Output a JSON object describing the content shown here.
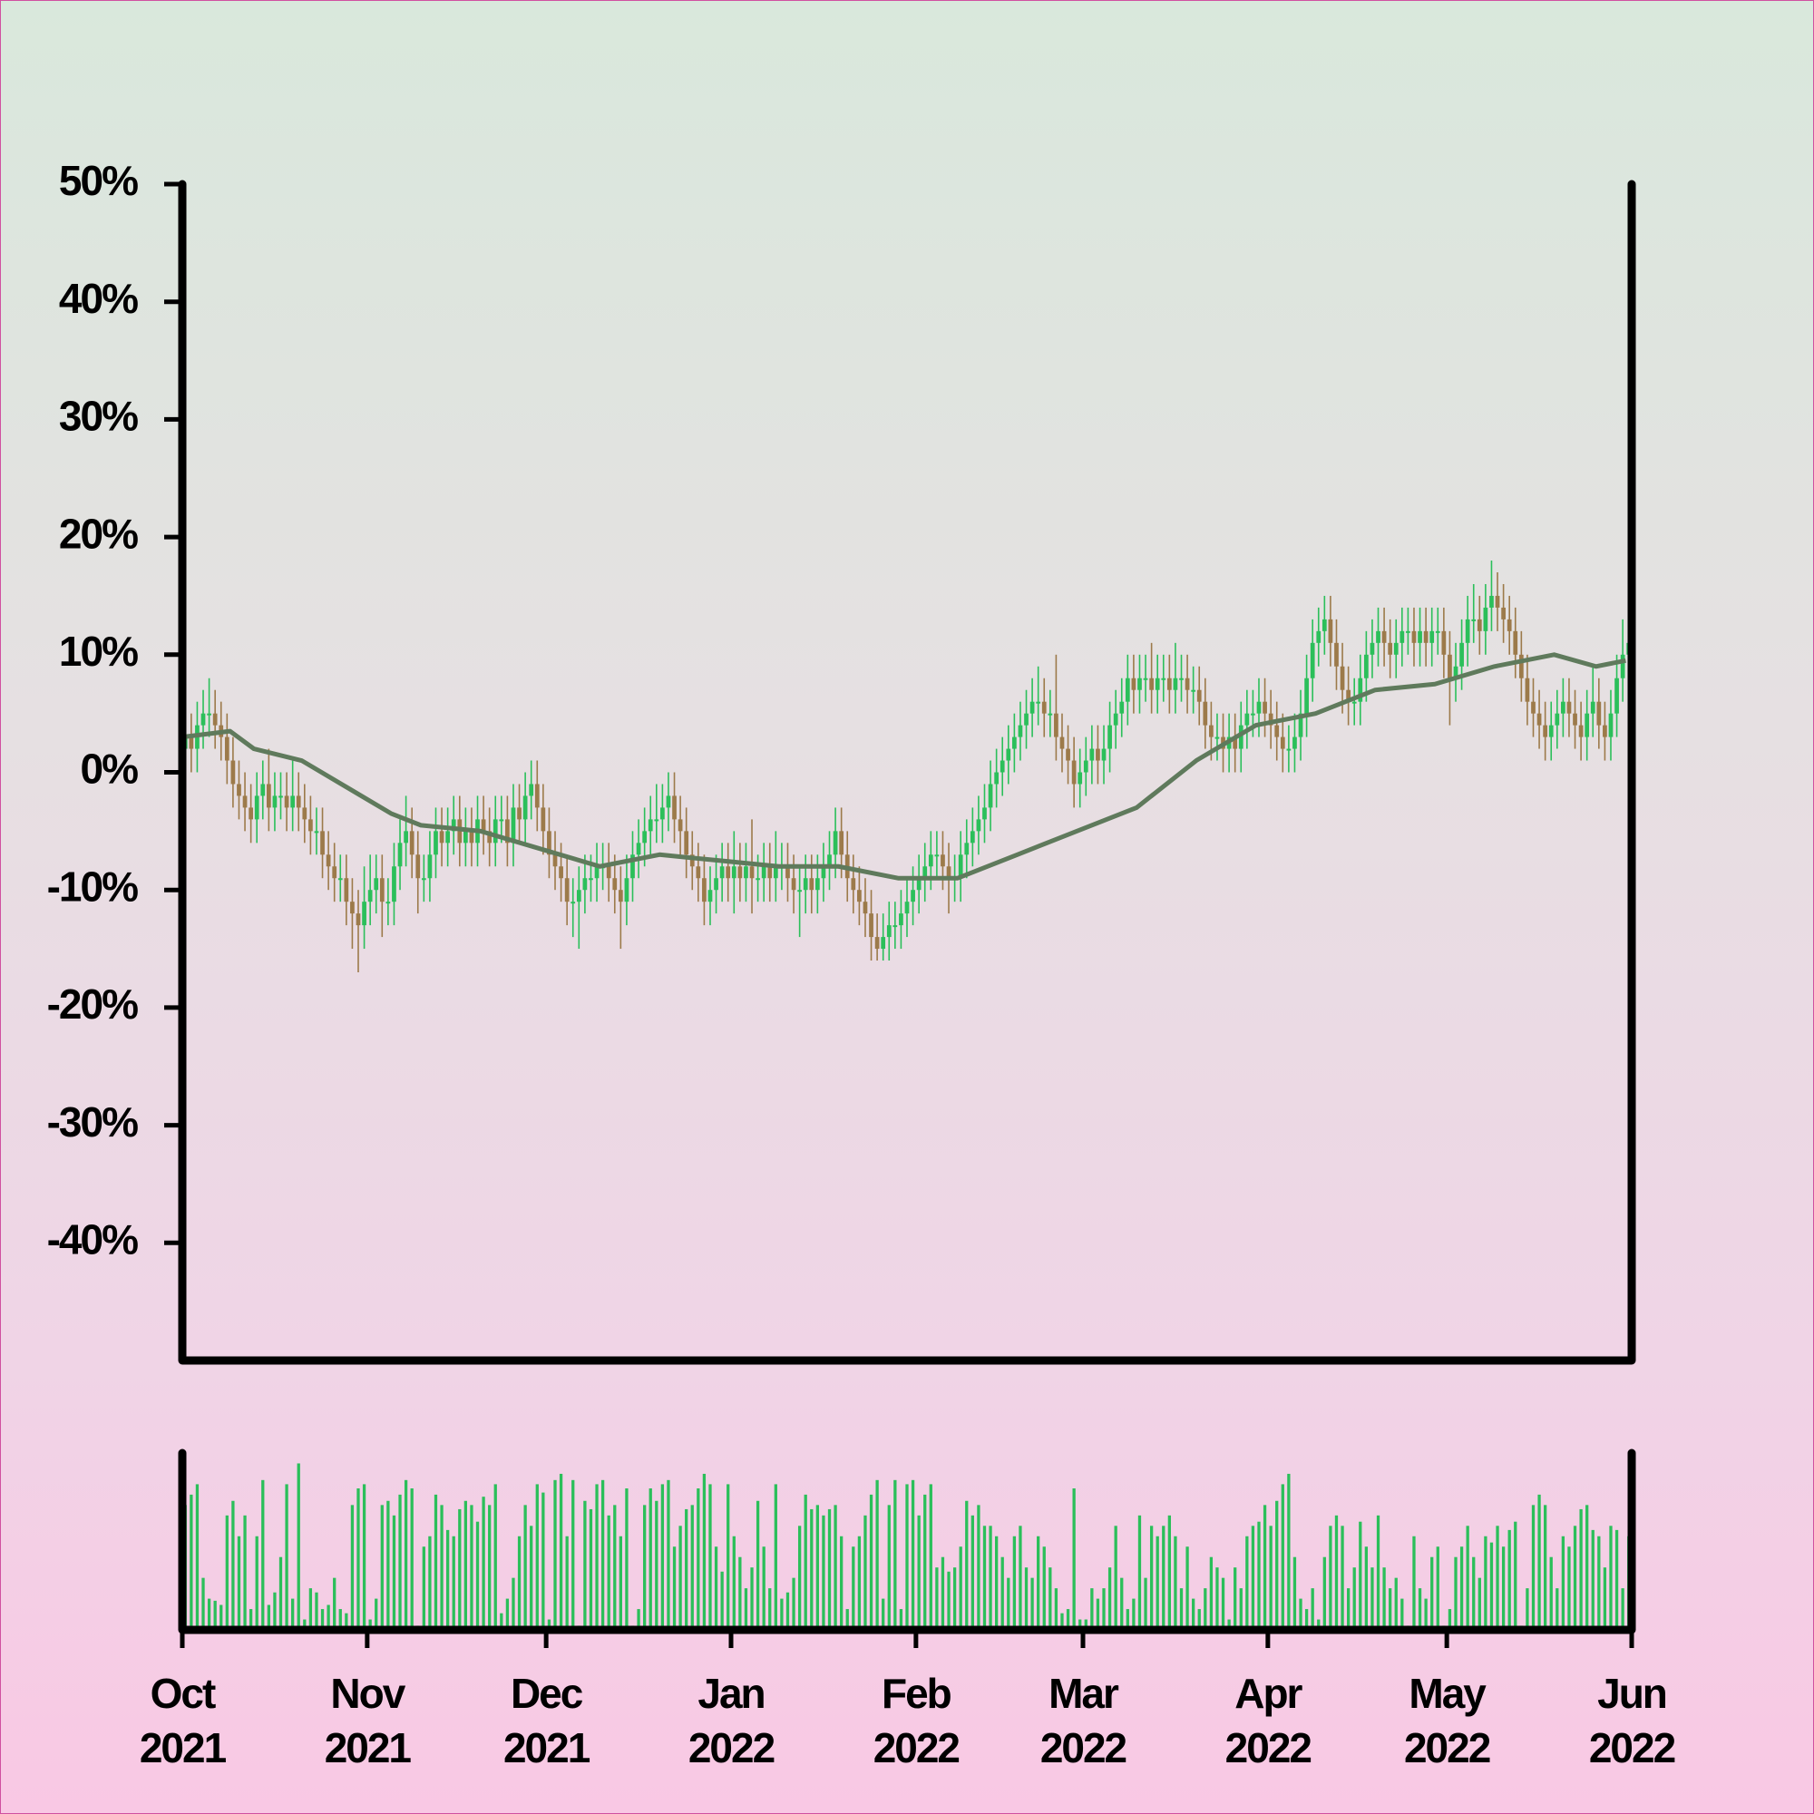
{
  "chart_data": {
    "type": "candlestick",
    "open": [
      2,
      3,
      2,
      4,
      5,
      5,
      4,
      3,
      1,
      -1,
      -2,
      -3,
      -4,
      -2,
      -1,
      -3,
      -2,
      -2,
      -3,
      -2,
      -3,
      -4,
      -5,
      -5,
      -7,
      -8,
      -9,
      -9,
      -11,
      -12,
      -13,
      -11,
      -10,
      -9,
      -11,
      -11,
      -8,
      -6,
      -5,
      -7,
      -9,
      -9,
      -7,
      -5,
      -6,
      -5,
      -4,
      -6,
      -5,
      -6,
      -4,
      -5,
      -6,
      -4,
      -4,
      -6,
      -3,
      -4,
      -2,
      -1,
      -3,
      -5,
      -7,
      -8,
      -9,
      -11,
      -11,
      -10,
      -9,
      -9,
      -8,
      -8,
      -9,
      -10,
      -11,
      -9,
      -7,
      -6,
      -5,
      -4,
      -4,
      -3,
      -2,
      -4,
      -5,
      -7,
      -8,
      -9,
      -11,
      -10,
      -9,
      -8,
      -9,
      -8,
      -9,
      -8,
      -9,
      -9,
      -8,
      -9,
      -8,
      -8,
      -9,
      -10,
      -10,
      -9,
      -10,
      -9,
      -8,
      -7,
      -5,
      -7,
      -9,
      -10,
      -11,
      -12,
      -14,
      -15,
      -14,
      -13,
      -13,
      -12,
      -11,
      -10,
      -9,
      -8,
      -7,
      -7,
      -8,
      -9,
      -9,
      -7,
      -6,
      -5,
      -4,
      -3,
      -1,
      0,
      1,
      2,
      3,
      4,
      5,
      6,
      6,
      5,
      5,
      3,
      2,
      1,
      -1,
      0,
      1,
      2,
      1,
      2,
      4,
      5,
      6,
      8,
      7,
      8,
      8,
      7,
      8,
      8,
      7,
      8,
      8,
      7,
      7,
      6,
      4,
      3,
      3,
      2,
      3,
      2,
      4,
      5,
      5,
      6,
      5,
      4,
      3,
      2,
      2,
      3,
      5,
      8,
      11,
      12,
      13,
      11,
      9,
      7,
      6,
      6,
      8,
      10,
      11,
      12,
      11,
      10,
      11,
      12,
      12,
      11,
      12,
      11,
      12,
      12,
      10,
      8,
      9,
      11,
      13,
      13,
      12,
      14,
      15,
      14,
      13,
      12,
      10,
      8,
      6,
      5,
      4,
      3,
      4,
      5,
      6,
      5,
      4,
      3,
      5,
      6,
      4,
      3,
      5,
      8,
      10
    ],
    "high": [
      6,
      5,
      6,
      7,
      8,
      7,
      6,
      5,
      3,
      1,
      0,
      -1,
      0,
      1,
      2,
      0,
      0,
      0,
      1,
      0,
      -1,
      -2,
      -3,
      -3,
      -5,
      -6,
      -7,
      -7,
      -9,
      -10,
      -8,
      -7,
      -7,
      -7,
      -9,
      -6,
      -4,
      -2,
      -3,
      -5,
      -7,
      -5,
      -3,
      -3,
      -3,
      -2,
      -2,
      -3,
      -3,
      -2,
      -2,
      -3,
      -2,
      -2,
      -2,
      -1,
      -1,
      0,
      1,
      1,
      -1,
      -3,
      -5,
      -6,
      -7,
      -9,
      -8,
      -7,
      -7,
      -6,
      -6,
      -6,
      -7,
      -8,
      -7,
      -5,
      -4,
      -3,
      -2,
      -1,
      -1,
      0,
      0,
      -2,
      -3,
      -5,
      -6,
      -7,
      -8,
      -7,
      -6,
      -6,
      -5,
      -6,
      -6,
      -4,
      -7,
      -6,
      -6,
      -5,
      -6,
      -6,
      -7,
      -8,
      -7,
      -7,
      -7,
      -6,
      -5,
      -3,
      -3,
      -5,
      -7,
      -8,
      -9,
      -10,
      -12,
      -12,
      -11,
      -11,
      -10,
      -9,
      -8,
      -7,
      -6,
      -5,
      -5,
      -5,
      -6,
      -7,
      -5,
      -4,
      -3,
      -2,
      -1,
      1,
      2,
      3,
      4,
      5,
      6,
      7,
      8,
      9,
      8,
      7,
      10,
      5,
      4,
      3,
      2,
      3,
      4,
      4,
      4,
      6,
      7,
      8,
      10,
      10,
      10,
      10,
      11,
      10,
      10,
      10,
      11,
      10,
      10,
      9,
      9,
      8,
      6,
      5,
      5,
      5,
      5,
      6,
      7,
      7,
      8,
      8,
      7,
      6,
      5,
      4,
      5,
      7,
      10,
      13,
      14,
      15,
      15,
      13,
      11,
      9,
      8,
      10,
      12,
      13,
      14,
      14,
      13,
      13,
      14,
      14,
      14,
      14,
      14,
      14,
      14,
      14,
      12,
      11,
      13,
      15,
      16,
      15,
      16,
      18,
      17,
      16,
      15,
      14,
      12,
      10,
      8,
      7,
      6,
      6,
      7,
      8,
      8,
      7,
      6,
      7,
      9,
      8,
      6,
      7,
      10,
      13,
      15
    ],
    "low": [
      -1,
      0,
      0,
      2,
      3,
      2,
      1,
      -1,
      -3,
      -4,
      -5,
      -6,
      -6,
      -4,
      -5,
      -5,
      -4,
      -5,
      -5,
      -5,
      -6,
      -7,
      -7,
      -9,
      -10,
      -11,
      -11,
      -13,
      -15,
      -17,
      -15,
      -13,
      -12,
      -14,
      -13,
      -13,
      -10,
      -8,
      -9,
      -12,
      -11,
      -11,
      -9,
      -8,
      -8,
      -7,
      -8,
      -8,
      -8,
      -8,
      -7,
      -8,
      -8,
      -6,
      -8,
      -8,
      -6,
      -6,
      -4,
      -5,
      -7,
      -9,
      -10,
      -11,
      -13,
      -14,
      -15,
      -12,
      -11,
      -11,
      -10,
      -11,
      -12,
      -15,
      -13,
      -11,
      -9,
      -8,
      -7,
      -6,
      -6,
      -5,
      -6,
      -7,
      -9,
      -10,
      -11,
      -13,
      -13,
      -12,
      -11,
      -11,
      -12,
      -11,
      -11,
      -12,
      -11,
      -11,
      -11,
      -11,
      -10,
      -11,
      -12,
      -14,
      -12,
      -12,
      -12,
      -11,
      -10,
      -9,
      -9,
      -11,
      -12,
      -13,
      -14,
      -16,
      -16,
      -16,
      -16,
      -15,
      -15,
      -14,
      -13,
      -12,
      -11,
      -10,
      -9,
      -10,
      -12,
      -11,
      -11,
      -9,
      -8,
      -7,
      -6,
      -5,
      -3,
      -2,
      -1,
      0,
      1,
      2,
      3,
      4,
      3,
      3,
      1,
      0,
      -1,
      -3,
      -3,
      -2,
      -1,
      -1,
      -1,
      0,
      2,
      3,
      4,
      5,
      5,
      6,
      5,
      5,
      6,
      5,
      5,
      6,
      5,
      5,
      4,
      2,
      1,
      1,
      0,
      0,
      0,
      0,
      2,
      3,
      3,
      3,
      2,
      1,
      0,
      0,
      0,
      1,
      3,
      6,
      9,
      10,
      9,
      7,
      5,
      4,
      4,
      4,
      6,
      8,
      9,
      9,
      8,
      8,
      9,
      10,
      9,
      9,
      9,
      9,
      10,
      8,
      4,
      6,
      7,
      9,
      11,
      10,
      10,
      12,
      12,
      11,
      10,
      8,
      6,
      4,
      3,
      2,
      1,
      1,
      2,
      3,
      3,
      2,
      1,
      1,
      3,
      2,
      1,
      1,
      3,
      6,
      8
    ],
    "close": [
      3,
      2,
      4,
      5,
      5,
      4,
      3,
      1,
      -1,
      -2,
      -3,
      -4,
      -2,
      -1,
      -3,
      -2,
      -2,
      -3,
      -2,
      -3,
      -4,
      -5,
      -5,
      -7,
      -8,
      -9,
      -9,
      -11,
      -12,
      -13,
      -11,
      -10,
      -9,
      -11,
      -11,
      -8,
      -6,
      -5,
      -7,
      -9,
      -9,
      -7,
      -5,
      -6,
      -5,
      -4,
      -6,
      -5,
      -6,
      -4,
      -5,
      -6,
      -4,
      -4,
      -6,
      -3,
      -4,
      -2,
      -1,
      -3,
      -5,
      -7,
      -8,
      -9,
      -11,
      -11,
      -10,
      -9,
      -9,
      -8,
      -8,
      -9,
      -10,
      -11,
      -9,
      -7,
      -6,
      -5,
      -4,
      -4,
      -3,
      -2,
      -4,
      -5,
      -7,
      -8,
      -9,
      -11,
      -10,
      -9,
      -8,
      -9,
      -8,
      -9,
      -8,
      -9,
      -9,
      -8,
      -9,
      -8,
      -8,
      -9,
      -10,
      -10,
      -9,
      -10,
      -9,
      -8,
      -7,
      -5,
      -7,
      -9,
      -10,
      -11,
      -12,
      -14,
      -15,
      -14,
      -13,
      -13,
      -12,
      -11,
      -10,
      -9,
      -8,
      -7,
      -7,
      -8,
      -9,
      -9,
      -7,
      -6,
      -5,
      -4,
      -3,
      -1,
      0,
      1,
      2,
      3,
      4,
      5,
      6,
      6,
      5,
      5,
      3,
      2,
      1,
      -1,
      0,
      1,
      2,
      1,
      2,
      4,
      5,
      6,
      8,
      7,
      8,
      8,
      7,
      8,
      8,
      7,
      8,
      8,
      7,
      7,
      6,
      4,
      3,
      3,
      2,
      3,
      2,
      4,
      5,
      5,
      6,
      5,
      4,
      3,
      2,
      2,
      3,
      5,
      8,
      11,
      12,
      13,
      11,
      9,
      7,
      6,
      6,
      8,
      10,
      11,
      12,
      11,
      10,
      11,
      12,
      12,
      11,
      12,
      11,
      12,
      12,
      10,
      8,
      9,
      11,
      13,
      13,
      12,
      14,
      15,
      14,
      13,
      12,
      10,
      8,
      6,
      5,
      4,
      3,
      4,
      5,
      6,
      5,
      4,
      3,
      5,
      6,
      4,
      3,
      5,
      8,
      10,
      11
    ],
    "up_color": "#2bbf5a",
    "down_color": "#9c7a4a",
    "moving_average": {
      "color": "#5f7a5c",
      "x": [
        0,
        8,
        12,
        20,
        30,
        35,
        40,
        50,
        60,
        70,
        80,
        90,
        100,
        110,
        120,
        130,
        140,
        150,
        160,
        170,
        180,
        190,
        200,
        210,
        220,
        230,
        237,
        242
      ],
      "values": [
        3,
        3.5,
        2,
        1,
        -2,
        -3.5,
        -4.5,
        -5,
        -6.5,
        -8,
        -7,
        -7.5,
        -8,
        -8,
        -9,
        -9,
        -7,
        -5,
        -3,
        1,
        4,
        5,
        7,
        7.5,
        9,
        10,
        9,
        9.5
      ]
    },
    "volume": {
      "color": "#2bbf5a",
      "ylim": [
        0,
        85
      ],
      "values": [
        60,
        65,
        70,
        25,
        15,
        14,
        12,
        55,
        62,
        45,
        55,
        10,
        45,
        72,
        12,
        18,
        35,
        70,
        15,
        80,
        5,
        20,
        18,
        10,
        12,
        25,
        10,
        8,
        60,
        68,
        70,
        5,
        15,
        60,
        62,
        55,
        65,
        72,
        68,
        2,
        40,
        45,
        65,
        60,
        48,
        45,
        58,
        62,
        60,
        52,
        64,
        60,
        70,
        8,
        15,
        25,
        45,
        60,
        50,
        70,
        66,
        5,
        72,
        75,
        45,
        72,
        2,
        62,
        58,
        70,
        72,
        55,
        60,
        45,
        68,
        2,
        10,
        60,
        68,
        62,
        70,
        72,
        40,
        50,
        58,
        60,
        68,
        75,
        70,
        40,
        28,
        70,
        45,
        35,
        20,
        30,
        62,
        40,
        20,
        70,
        15,
        18,
        25,
        50,
        65,
        58,
        60,
        55,
        58,
        60,
        45,
        10,
        40,
        45,
        55,
        65,
        72,
        15,
        60,
        72,
        10,
        70,
        72,
        55,
        65,
        70,
        30,
        35,
        28,
        30,
        40,
        62,
        55,
        60,
        50,
        50,
        45,
        35,
        25,
        45,
        50,
        30,
        25,
        45,
        40,
        30,
        20,
        8,
        10,
        68,
        5,
        5,
        20,
        15,
        20,
        30,
        50,
        25,
        10,
        15,
        55,
        25,
        50,
        45,
        50,
        55,
        45,
        20,
        40,
        15,
        10,
        20,
        35,
        30,
        25,
        5,
        30,
        20,
        45,
        50,
        52,
        60,
        50,
        62,
        70,
        75,
        35,
        15,
        10,
        20,
        5,
        35,
        50,
        55,
        50,
        20,
        30,
        52,
        40,
        30,
        55,
        30,
        20,
        25,
        15,
        2,
        45,
        20,
        15,
        35,
        40,
        2,
        10,
        35,
        40,
        50,
        35,
        25,
        45,
        42,
        50,
        40,
        48,
        52,
        2,
        20,
        60,
        65,
        60,
        35,
        20,
        45,
        40,
        50,
        58,
        60,
        48,
        45,
        30,
        50,
        48,
        20,
        45
      ]
    },
    "xlim": [
      0,
      243
    ],
    "xticks": [
      {
        "value": 0,
        "label": "Oct\n2021"
      },
      {
        "value": 31,
        "label": "Nov\n2021"
      },
      {
        "value": 61,
        "label": "Dec\n2021"
      },
      {
        "value": 92,
        "label": "Jan\n2022"
      },
      {
        "value": 123,
        "label": "Feb\n2022"
      },
      {
        "value": 151,
        "label": "Mar\n2022"
      },
      {
        "value": 182,
        "label": "Apr\n2022"
      },
      {
        "value": 212,
        "label": "May\n2022"
      },
      {
        "value": 243,
        "label": "Jun\n2022"
      }
    ],
    "ylim": [
      -50,
      50
    ],
    "yticks": [
      {
        "value": -40,
        "label": "-40%"
      },
      {
        "value": -30,
        "label": "-30%"
      },
      {
        "value": -20,
        "label": "-20%"
      },
      {
        "value": -10,
        "label": "-10%"
      },
      {
        "value": 0,
        "label": "0%"
      },
      {
        "value": 10,
        "label": "10%"
      },
      {
        "value": 20,
        "label": "20%"
      },
      {
        "value": 30,
        "label": "30%"
      },
      {
        "value": 40,
        "label": "40%"
      },
      {
        "value": 50,
        "label": "50%"
      }
    ]
  }
}
